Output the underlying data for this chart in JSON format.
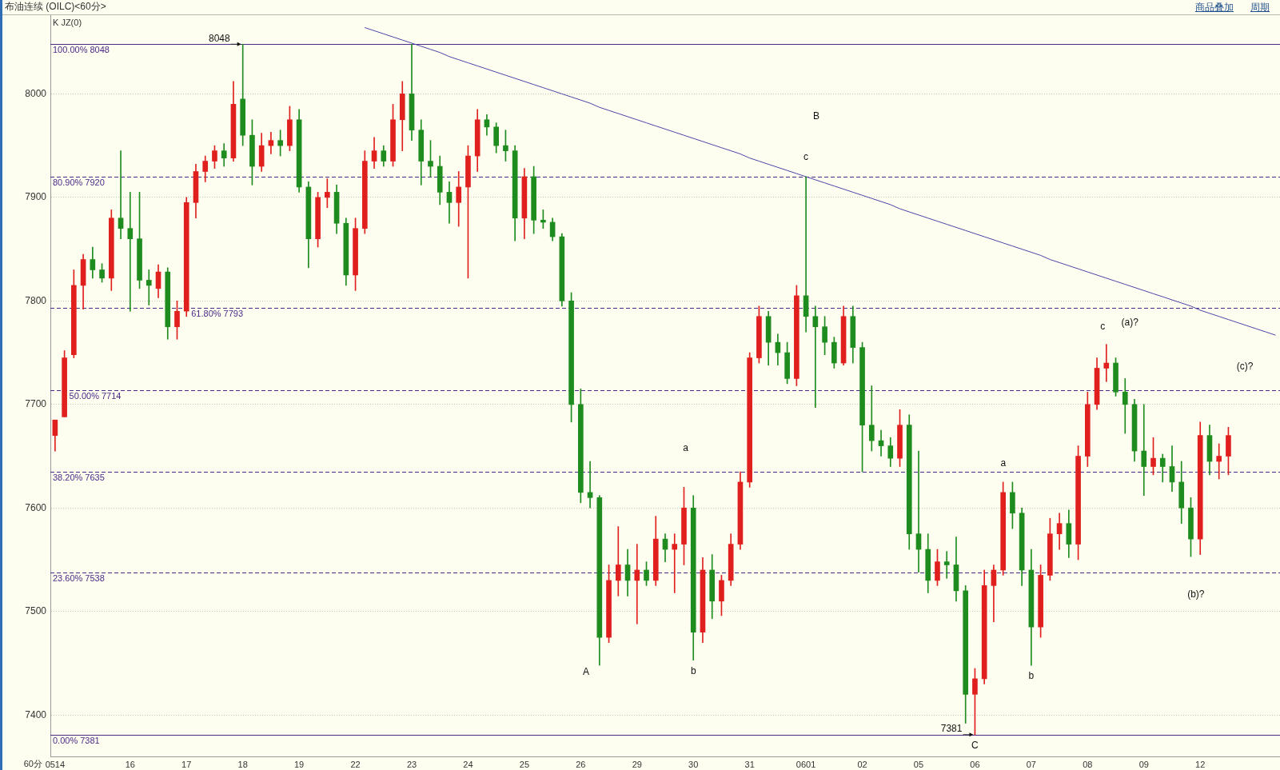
{
  "chart_data": {
    "type": "candlestick",
    "title": "布油连续 (OILC)<60分>",
    "subtitle": "K JZ(0)",
    "xlabel": "60分",
    "categories": [
      "0514",
      null,
      null,
      null,
      null,
      null,
      null,
      null,
      "16",
      null,
      null,
      null,
      null,
      null,
      "17",
      null,
      null,
      null,
      null,
      null,
      "18",
      null,
      null,
      null,
      null,
      null,
      "19",
      null,
      null,
      null,
      null,
      null,
      "22",
      null,
      null,
      null,
      null,
      null,
      "23",
      null,
      null,
      null,
      null,
      null,
      "24",
      null,
      null,
      null,
      null,
      null,
      "25",
      null,
      null,
      null,
      null,
      null,
      "26",
      null,
      null,
      null,
      null,
      null,
      "29",
      null,
      null,
      null,
      null,
      null,
      "30",
      null,
      null,
      null,
      null,
      null,
      "31",
      null,
      null,
      null,
      null,
      null,
      "0601",
      null,
      null,
      null,
      null,
      null,
      "02",
      null,
      null,
      null,
      null,
      null,
      "05",
      null,
      null,
      null,
      null,
      null,
      "06",
      null,
      null,
      null,
      null,
      null,
      "07",
      null,
      null,
      null,
      null,
      null,
      "08",
      null,
      null,
      null,
      null,
      null,
      "09",
      null,
      null,
      null,
      null,
      null,
      "12",
      null,
      null,
      null,
      null,
      null,
      null,
      null,
      null
    ],
    "ohlc": [
      [
        7670,
        7685,
        7655,
        7685
      ],
      [
        7688,
        7752,
        7688,
        7745
      ],
      [
        7748,
        7830,
        7745,
        7815
      ],
      [
        7815,
        7845,
        7792,
        7840
      ],
      [
        7840,
        7852,
        7822,
        7830
      ],
      [
        7830,
        7836,
        7818,
        7822
      ],
      [
        7822,
        7888,
        7810,
        7880
      ],
      [
        7880,
        7945,
        7860,
        7870
      ],
      [
        7870,
        7905,
        7790,
        7860
      ],
      [
        7860,
        7905,
        7812,
        7820
      ],
      [
        7820,
        7830,
        7796,
        7815
      ],
      [
        7812,
        7835,
        7803,
        7828
      ],
      [
        7828,
        7832,
        7763,
        7775
      ],
      [
        7775,
        7800,
        7763,
        7790
      ],
      [
        7790,
        7900,
        7785,
        7895
      ],
      [
        7895,
        7932,
        7880,
        7925
      ],
      [
        7925,
        7940,
        7915,
        7935
      ],
      [
        7935,
        7950,
        7928,
        7945
      ],
      [
        7945,
        7952,
        7930,
        7938
      ],
      [
        7938,
        8012,
        7935,
        7990
      ],
      [
        7995,
        8048,
        7950,
        7960
      ],
      [
        7960,
        7975,
        7912,
        7930
      ],
      [
        7930,
        7962,
        7925,
        7950
      ],
      [
        7950,
        7963,
        7942,
        7955
      ],
      [
        7955,
        7965,
        7940,
        7950
      ],
      [
        7950,
        7988,
        7945,
        7975
      ],
      [
        7975,
        7985,
        7905,
        7910
      ],
      [
        7910,
        7915,
        7832,
        7860
      ],
      [
        7860,
        7905,
        7852,
        7900
      ],
      [
        7900,
        7918,
        7890,
        7905
      ],
      [
        7905,
        7912,
        7865,
        7875
      ],
      [
        7875,
        7880,
        7815,
        7825
      ],
      [
        7825,
        7880,
        7810,
        7870
      ],
      [
        7870,
        7945,
        7865,
        7935
      ],
      [
        7935,
        7958,
        7928,
        7945
      ],
      [
        7945,
        7950,
        7930,
        7935
      ],
      [
        7935,
        7990,
        7930,
        7975
      ],
      [
        7975,
        8012,
        7945,
        8000
      ],
      [
        8000,
        8048,
        7955,
        7965
      ],
      [
        7965,
        7975,
        7912,
        7935
      ],
      [
        7935,
        7955,
        7920,
        7930
      ],
      [
        7930,
        7940,
        7893,
        7905
      ],
      [
        7905,
        7915,
        7875,
        7895
      ],
      [
        7895,
        7925,
        7872,
        7910
      ],
      [
        7910,
        7950,
        7822,
        7940
      ],
      [
        7940,
        7985,
        7925,
        7975
      ],
      [
        7975,
        7980,
        7960,
        7968
      ],
      [
        7968,
        7972,
        7943,
        7950
      ],
      [
        7950,
        7965,
        7935,
        7945
      ],
      [
        7945,
        7950,
        7858,
        7880
      ],
      [
        7880,
        7928,
        7860,
        7920
      ],
      [
        7920,
        7930,
        7865,
        7878
      ],
      [
        7878,
        7888,
        7870,
        7876
      ],
      [
        7876,
        7880,
        7858,
        7862
      ],
      [
        7862,
        7865,
        7795,
        7800
      ],
      [
        7800,
        7808,
        7683,
        7700
      ],
      [
        7700,
        7715,
        7605,
        7615
      ],
      [
        7615,
        7645,
        7600,
        7610
      ],
      [
        7610,
        7612,
        7448,
        7475
      ],
      [
        7475,
        7545,
        7470,
        7530
      ],
      [
        7530,
        7582,
        7515,
        7545
      ],
      [
        7545,
        7560,
        7515,
        7530
      ],
      [
        7530,
        7565,
        7488,
        7540
      ],
      [
        7540,
        7548,
        7525,
        7530
      ],
      [
        7530,
        7592,
        7525,
        7570
      ],
      [
        7570,
        7575,
        7548,
        7560
      ],
      [
        7560,
        7575,
        7518,
        7565
      ],
      [
        7565,
        7620,
        7545,
        7600
      ],
      [
        7600,
        7612,
        7453,
        7480
      ],
      [
        7480,
        7552,
        7470,
        7540
      ],
      [
        7540,
        7555,
        7493,
        7510
      ],
      [
        7510,
        7535,
        7496,
        7530
      ],
      [
        7530,
        7575,
        7525,
        7565
      ],
      [
        7565,
        7635,
        7560,
        7625
      ],
      [
        7625,
        7750,
        7620,
        7745
      ],
      [
        7745,
        7795,
        7740,
        7785
      ],
      [
        7785,
        7790,
        7738,
        7760
      ],
      [
        7760,
        7768,
        7738,
        7750
      ],
      [
        7750,
        7760,
        7720,
        7725
      ],
      [
        7725,
        7815,
        7718,
        7805
      ],
      [
        7805,
        7920,
        7770,
        7785
      ],
      [
        7785,
        7795,
        7697,
        7775
      ],
      [
        7775,
        7785,
        7748,
        7760
      ],
      [
        7760,
        7765,
        7735,
        7740
      ],
      [
        7740,
        7795,
        7738,
        7785
      ],
      [
        7785,
        7795,
        7740,
        7755
      ],
      [
        7755,
        7760,
        7635,
        7680
      ],
      [
        7680,
        7718,
        7655,
        7665
      ],
      [
        7665,
        7675,
        7650,
        7660
      ],
      [
        7660,
        7668,
        7640,
        7648
      ],
      [
        7648,
        7695,
        7640,
        7680
      ],
      [
        7680,
        7690,
        7560,
        7575
      ],
      [
        7575,
        7655,
        7538,
        7560
      ],
      [
        7560,
        7575,
        7518,
        7530
      ],
      [
        7530,
        7560,
        7525,
        7548
      ],
      [
        7548,
        7558,
        7532,
        7545
      ],
      [
        7545,
        7572,
        7510,
        7520
      ],
      [
        7520,
        7525,
        7392,
        7420
      ],
      [
        7420,
        7445,
        7381,
        7435
      ],
      [
        7435,
        7540,
        7430,
        7525
      ],
      [
        7525,
        7545,
        7490,
        7540
      ],
      [
        7540,
        7625,
        7535,
        7615
      ],
      [
        7615,
        7625,
        7580,
        7595
      ],
      [
        7595,
        7600,
        7525,
        7540
      ],
      [
        7540,
        7560,
        7448,
        7485
      ],
      [
        7485,
        7545,
        7475,
        7535
      ],
      [
        7535,
        7590,
        7530,
        7575
      ],
      [
        7575,
        7595,
        7560,
        7585
      ],
      [
        7585,
        7598,
        7552,
        7565
      ],
      [
        7565,
        7660,
        7550,
        7650
      ],
      [
        7650,
        7712,
        7640,
        7700
      ],
      [
        7700,
        7745,
        7695,
        7735
      ],
      [
        7735,
        7758,
        7722,
        7740
      ],
      [
        7740,
        7745,
        7708,
        7712
      ],
      [
        7712,
        7725,
        7672,
        7700
      ],
      [
        7700,
        7705,
        7645,
        7655
      ],
      [
        7655,
        7700,
        7612,
        7640
      ],
      [
        7640,
        7668,
        7632,
        7648
      ],
      [
        7648,
        7652,
        7625,
        7640
      ],
      [
        7640,
        7660,
        7616,
        7625
      ],
      [
        7625,
        7645,
        7585,
        7600
      ],
      [
        7600,
        7610,
        7553,
        7570
      ],
      [
        7570,
        7683,
        7555,
        7670
      ],
      [
        7670,
        7680,
        7632,
        7645
      ],
      [
        7645,
        7662,
        7628,
        7650
      ],
      [
        7650,
        7678,
        7632,
        7670
      ],
      null,
      null,
      null,
      null,
      null
    ],
    "colors": [
      "#e0201e",
      "#e0201e",
      "#e0201e",
      "#e0201e",
      "#1e8c1e",
      "#1e8c1e",
      "#e0201e",
      "#1e8c1e",
      "#1e8c1e",
      "#1e8c1e",
      "#1e8c1e",
      "#e0201e",
      "#1e8c1e",
      "#e0201e",
      "#e0201e",
      "#e0201e",
      "#e0201e",
      "#e0201e",
      "#1e8c1e",
      "#e0201e",
      "#1e8c1e",
      "#1e8c1e",
      "#e0201e",
      "#e0201e",
      "#1e8c1e",
      "#e0201e",
      "#1e8c1e",
      "#1e8c1e",
      "#e0201e",
      "#e0201e",
      "#1e8c1e",
      "#1e8c1e",
      "#e0201e",
      "#e0201e",
      "#e0201e",
      "#1e8c1e",
      "#e0201e",
      "#e0201e",
      "#1e8c1e",
      "#1e8c1e",
      "#1e8c1e",
      "#1e8c1e",
      "#1e8c1e",
      "#e0201e",
      "#e0201e",
      "#e0201e",
      "#1e8c1e",
      "#1e8c1e",
      "#1e8c1e",
      "#1e8c1e",
      "#e0201e",
      "#1e8c1e",
      "#1e8c1e",
      "#1e8c1e",
      "#1e8c1e",
      "#1e8c1e",
      "#1e8c1e",
      "#1e8c1e",
      "#1e8c1e",
      "#e0201e",
      "#e0201e",
      "#1e8c1e",
      "#e0201e",
      "#1e8c1e",
      "#e0201e",
      "#1e8c1e",
      "#e0201e",
      "#e0201e",
      "#1e8c1e",
      "#e0201e",
      "#1e8c1e",
      "#e0201e",
      "#e0201e",
      "#e0201e",
      "#e0201e",
      "#e0201e",
      "#1e8c1e",
      "#1e8c1e",
      "#1e8c1e",
      "#e0201e",
      "#1e8c1e",
      "#1e8c1e",
      "#1e8c1e",
      "#1e8c1e",
      "#e0201e",
      "#1e8c1e",
      "#1e8c1e",
      "#1e8c1e",
      "#1e8c1e",
      "#1e8c1e",
      "#e0201e",
      "#1e8c1e",
      "#1e8c1e",
      "#1e8c1e",
      "#e0201e",
      "#1e8c1e",
      "#1e8c1e",
      "#1e8c1e",
      "#e0201e",
      "#e0201e",
      "#e0201e",
      "#e0201e",
      "#1e8c1e",
      "#1e8c1e",
      "#1e8c1e",
      "#e0201e",
      "#e0201e",
      "#e0201e",
      "#1e8c1e",
      "#e0201e",
      "#e0201e",
      "#e0201e",
      "#e0201e",
      "#1e8c1e",
      "#1e8c1e",
      "#1e8c1e",
      "#1e8c1e",
      "#e0201e",
      "#1e8c1e",
      "#1e8c1e",
      "#1e8c1e",
      "#1e8c1e",
      "#e0201e",
      "#1e8c1e",
      "#e0201e",
      "#e0201e",
      null,
      null,
      null,
      null,
      null
    ],
    "series": [
      {
        "type": "line",
        "color": "#4c44a8",
        "values": [
          null,
          null,
          null,
          null,
          null,
          null,
          null,
          null,
          null,
          null,
          null,
          null,
          null,
          null,
          null,
          null,
          null,
          null,
          null,
          null,
          null,
          null,
          null,
          null,
          null,
          null,
          null,
          null,
          null,
          null,
          null,
          null,
          null,
          8064,
          8061,
          8058,
          8055,
          8052,
          8049,
          8046,
          8043,
          8040,
          8036,
          8033,
          8030,
          8027,
          8024,
          8021,
          8018,
          8015,
          8012,
          8009,
          8006,
          8003,
          8000,
          7997,
          7994,
          7991,
          7987,
          7984,
          7981,
          7978,
          7975,
          7972,
          7969,
          7966,
          7963,
          7960,
          7957,
          7954,
          7951,
          7948,
          7945,
          7942,
          7938,
          7935,
          7932,
          7929,
          7926,
          7923,
          7920,
          7917,
          7914,
          7911,
          7908,
          7905,
          7902,
          7899,
          7896,
          7893,
          7889,
          7886,
          7883,
          7880,
          7877,
          7874,
          7871,
          7868,
          7865,
          7862,
          7859,
          7856,
          7853,
          7850,
          7847,
          7844,
          7840,
          7837,
          7834,
          7831,
          7828,
          7825,
          7822,
          7819,
          7816,
          7813,
          7810,
          7807,
          7804,
          7801,
          7798,
          7795,
          7791,
          7788,
          7785,
          7782,
          7779,
          7776,
          7773,
          7770,
          7767
        ]
      }
    ],
    "ylim": [
      7360,
      8076
    ],
    "yticks": [
      7400,
      7500,
      7600,
      7700,
      7800,
      7900,
      8000
    ],
    "grid": "y",
    "ref_lines": [
      {
        "axis": "y",
        "value": 8048,
        "label": "100.00% 8048",
        "color": "#4a2a86",
        "line_style": "solid"
      },
      {
        "axis": "y",
        "value": 7920,
        "label": "80.90% 7920",
        "color": "#4a2a86",
        "line_style": "dashed"
      },
      {
        "axis": "y",
        "value": 7793,
        "label": "61.80% 7793",
        "color": "#4a2a86",
        "line_style": "dashed"
      },
      {
        "axis": "y",
        "value": 7714,
        "label": "50.00% 7714",
        "color": "#4a2a86",
        "line_style": "dashed"
      },
      {
        "axis": "y",
        "value": 7635,
        "label": "38.20% 7635",
        "color": "#4a2a86",
        "line_style": "dashed"
      },
      {
        "axis": "y",
        "value": 7538,
        "label": "23.60% 7538",
        "color": "#4a2a86",
        "line_style": "dashed"
      },
      {
        "axis": "y",
        "value": 7381,
        "label": "0.00% 7381",
        "color": "#4a2a86",
        "line_style": "solid"
      }
    ],
    "annotations": [
      {
        "text": "8048",
        "x": "18",
        "y": 8048
      },
      {
        "text": "7381",
        "x": "06",
        "y": 7381
      },
      {
        "text": "b",
        "x": "30",
        "y": 7453
      },
      {
        "text": "c",
        "x": "0601",
        "y": 7920
      },
      {
        "text": "C",
        "x": "06",
        "y": 7381
      },
      {
        "text": "b",
        "x": "07",
        "y": 7448
      },
      "B",
      "a",
      "A",
      "a",
      "c",
      "(a)?",
      "(b)?",
      "(c)?",
      "商品叠加",
      "周期"
    ]
  }
}
